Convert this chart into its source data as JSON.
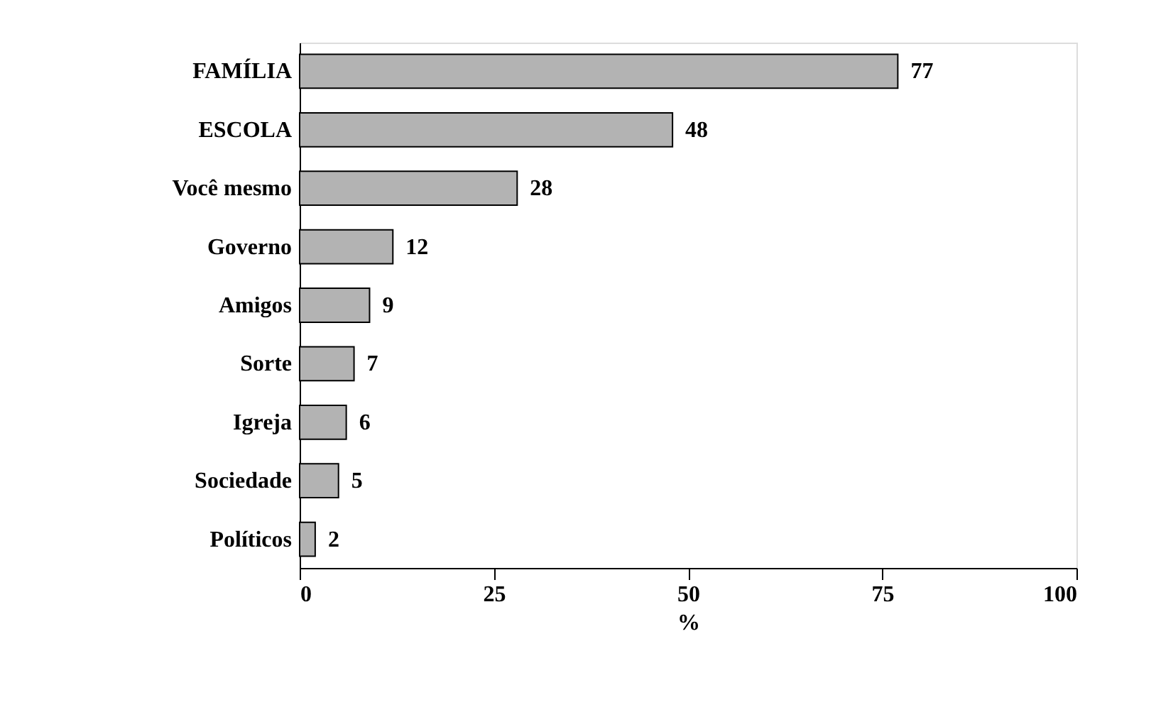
{
  "chart_data": {
    "type": "bar",
    "orientation": "horizontal",
    "xlabel": "%",
    "categories": [
      "FAMÍLIA",
      "ESCOLA",
      "Você mesmo",
      "Governo",
      "Amigos",
      "Sorte",
      "Igreja",
      "Sociedade",
      "Políticos"
    ],
    "values": [
      77,
      48,
      28,
      12,
      9,
      7,
      6,
      5,
      2
    ],
    "color": "#b3b3b3",
    "xlim": [
      0,
      100
    ],
    "xticks": [
      0,
      25,
      50,
      75,
      100
    ],
    "data_labels": true,
    "grid": false
  }
}
